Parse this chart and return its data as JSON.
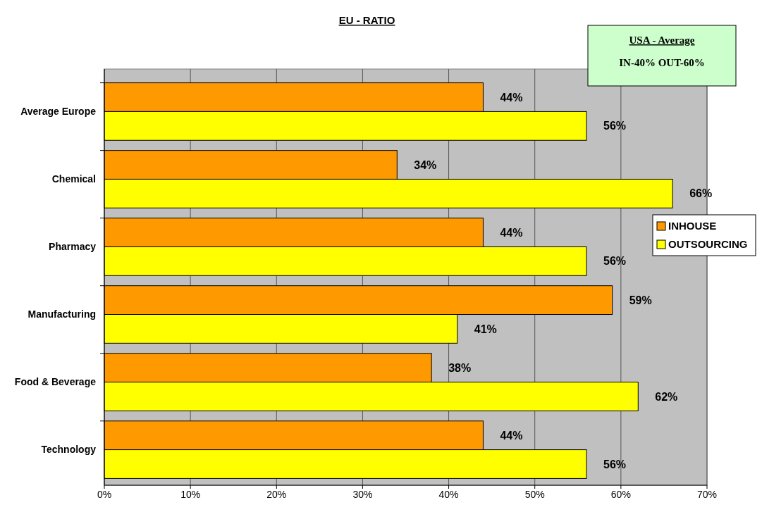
{
  "chart_data": {
    "type": "bar",
    "orientation": "horizontal",
    "title": "EU - RATIO",
    "categories": [
      "Average Europe",
      "Chemical",
      "Pharmacy",
      "Manufacturing",
      "Food & Beverage",
      "Technology"
    ],
    "series": [
      {
        "name": "INHOUSE",
        "color": "#ff9900",
        "values": [
          44,
          34,
          44,
          59,
          38,
          44
        ],
        "value_labels": [
          "44%",
          "34%",
          "44%",
          "59%",
          "38%",
          "44%"
        ]
      },
      {
        "name": "OUTSOURCING",
        "color": "#ffff00",
        "values": [
          56,
          66,
          56,
          41,
          62,
          56
        ],
        "value_labels": [
          "56%",
          "66%",
          "56%",
          "41%",
          "62%",
          "56%"
        ]
      }
    ],
    "xlim": [
      0,
      70
    ],
    "xticks": [
      {
        "value": 0,
        "label": "0%"
      },
      {
        "value": 10,
        "label": "10%"
      },
      {
        "value": 20,
        "label": "20%"
      },
      {
        "value": 30,
        "label": "30%"
      },
      {
        "value": 40,
        "label": "40%"
      },
      {
        "value": 50,
        "label": "50%"
      },
      {
        "value": 60,
        "label": "60%"
      },
      {
        "value": 70,
        "label": "70%"
      }
    ],
    "grid": "x",
    "legend": "right",
    "annotations": [
      "USA - Average",
      "IN-40% OUT-60%"
    ]
  }
}
